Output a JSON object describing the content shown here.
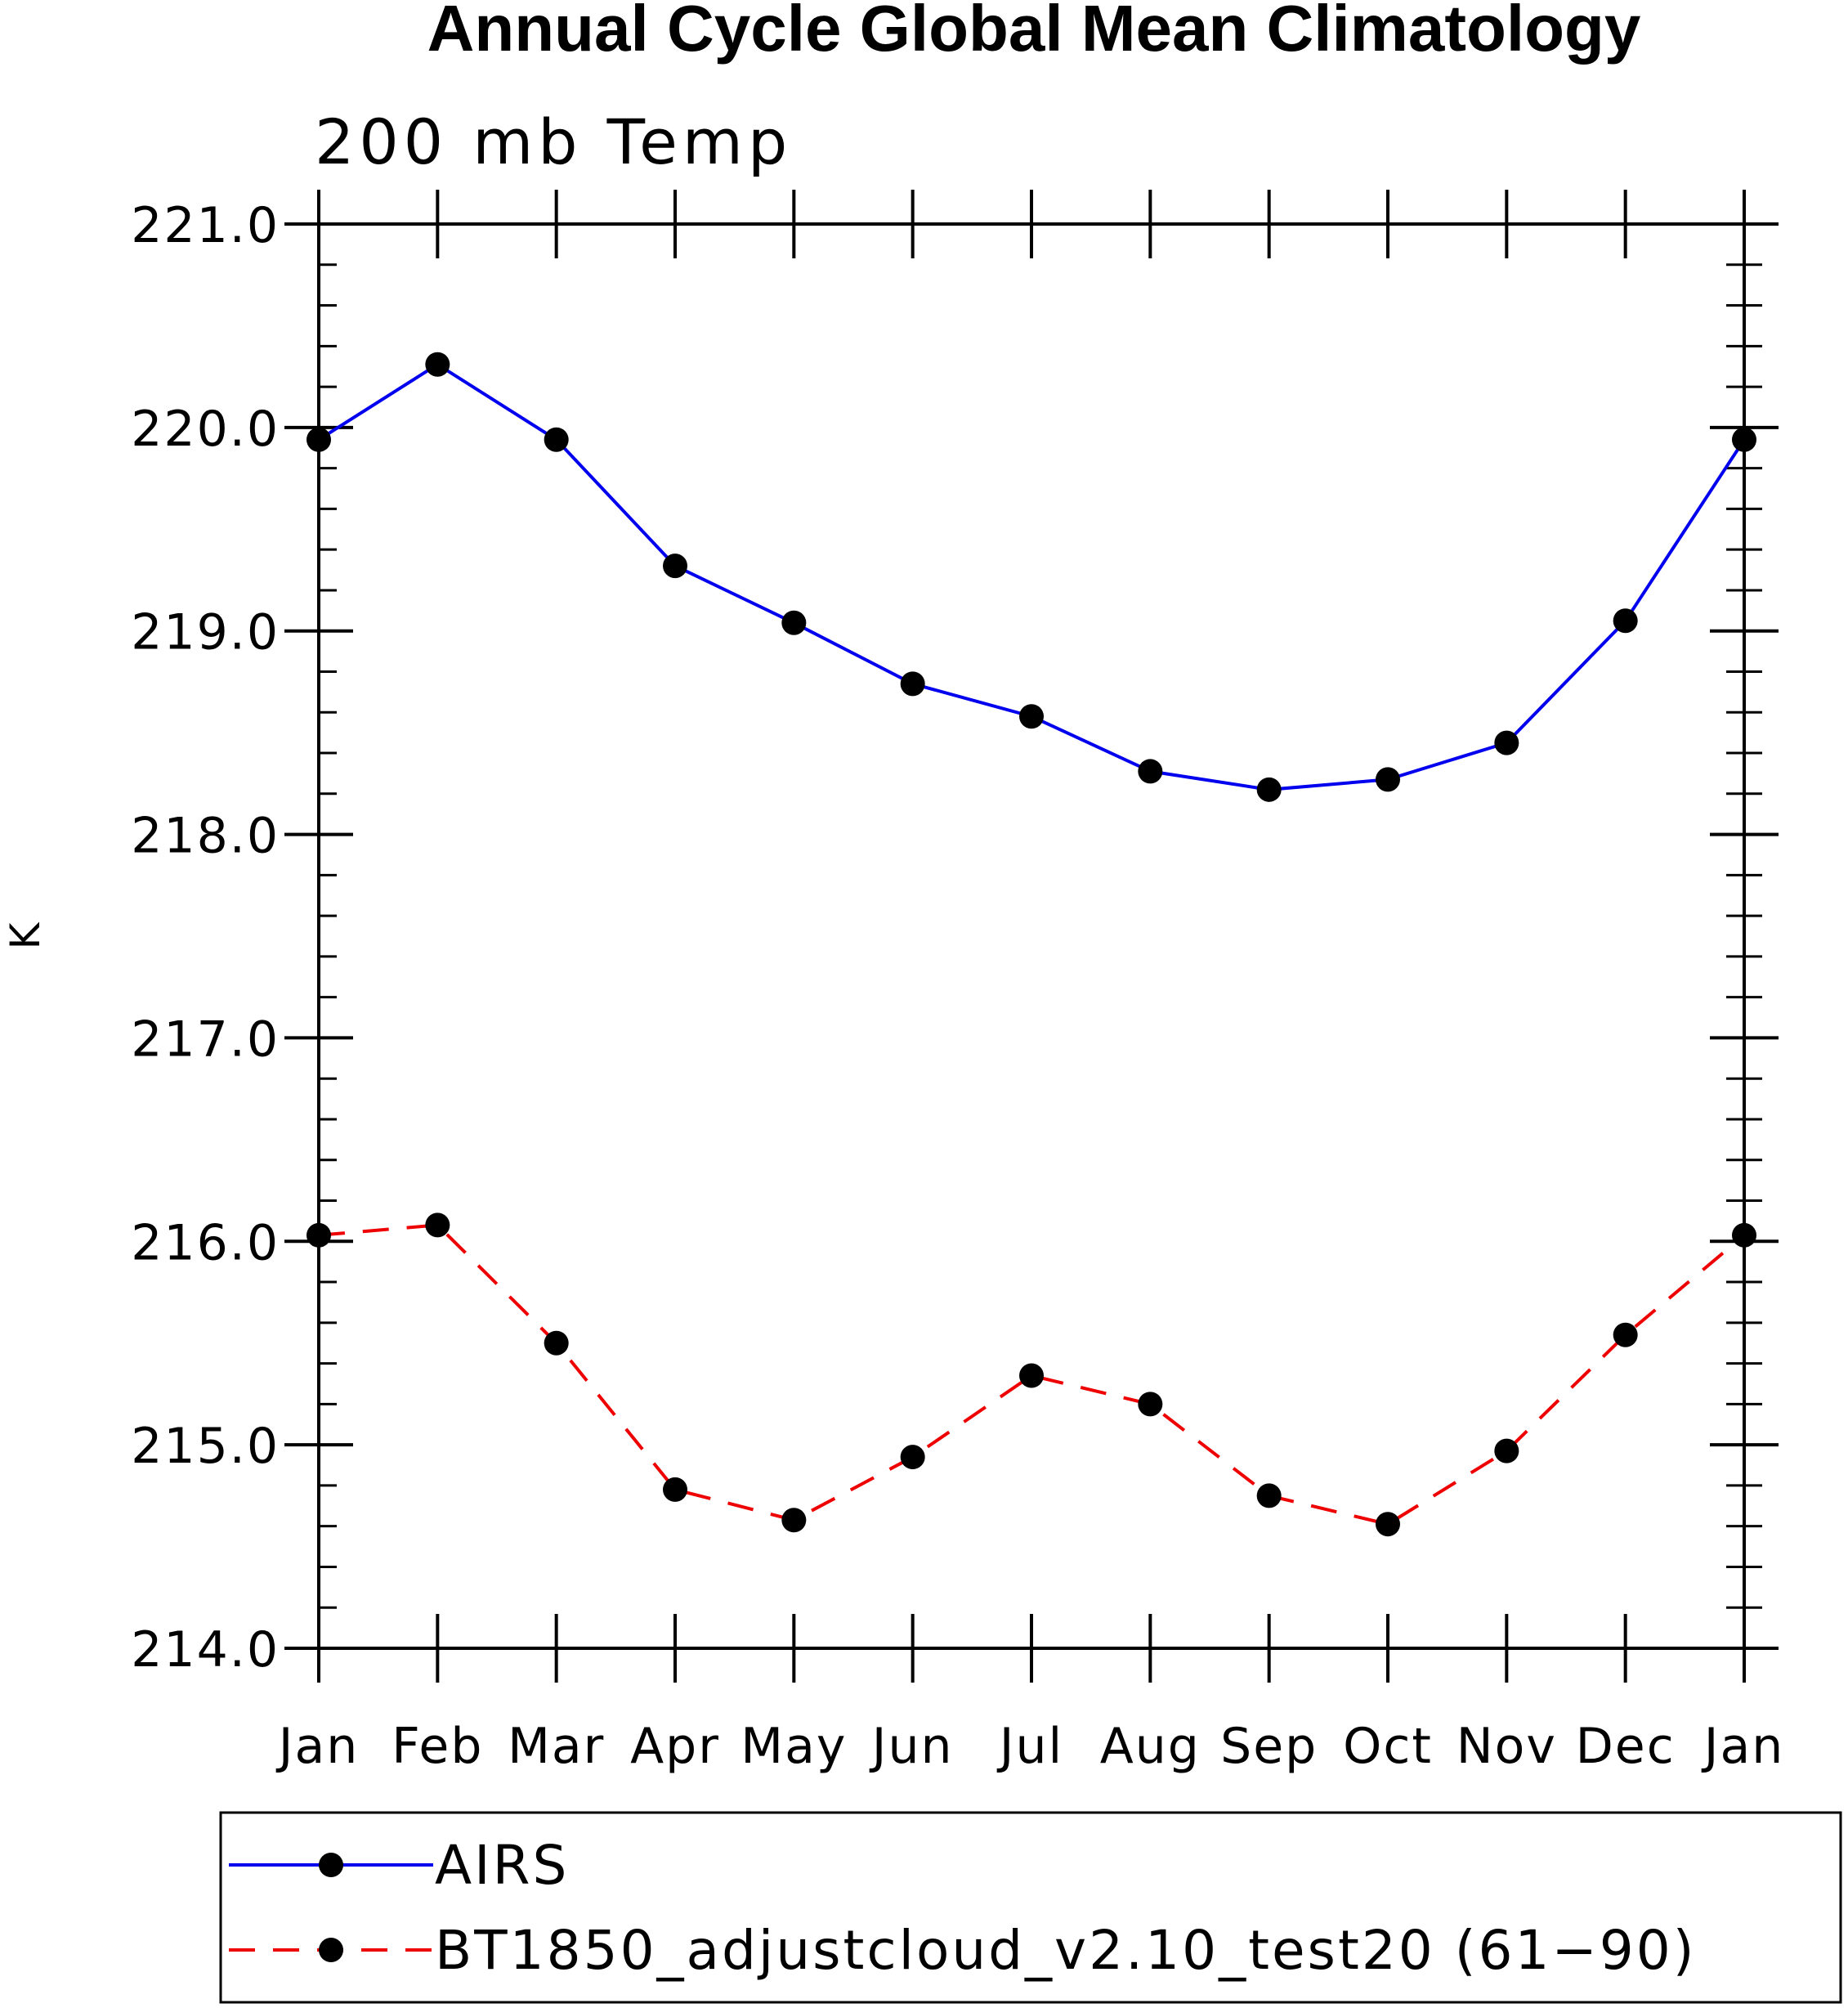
{
  "chart_data": {
    "type": "line",
    "title": "Annual Cycle Global Mean Climatology",
    "subtitle": "200 mb Temp",
    "ylabel": "K",
    "xlabel": "",
    "ylim": [
      214.0,
      221.0
    ],
    "y_ticks": [
      "214.0",
      "215.0",
      "216.0",
      "217.0",
      "218.0",
      "219.0",
      "220.0",
      "221.0"
    ],
    "y_minor_step": 0.2,
    "categories": [
      "Jan",
      "Feb",
      "Mar",
      "Apr",
      "May",
      "Jun",
      "Jul",
      "Aug",
      "Sep",
      "Oct",
      "Nov",
      "Dec",
      "Jan"
    ],
    "series": [
      {
        "name": "AIRS",
        "color": "#0000ee",
        "dash": "solid",
        "values": [
          219.94,
          220.31,
          219.94,
          219.32,
          219.04,
          218.74,
          218.58,
          218.31,
          218.22,
          218.27,
          218.45,
          219.05,
          219.94
        ]
      },
      {
        "name": "BT1850_adjustcloud_v2.10_test20 (61−90)",
        "color": "#ee0000",
        "dash": "dashed",
        "values": [
          216.03,
          216.08,
          215.5,
          214.78,
          214.63,
          214.94,
          215.34,
          215.2,
          214.75,
          214.61,
          214.97,
          215.54,
          216.03
        ]
      }
    ],
    "legend": "bottom",
    "grid": false
  }
}
